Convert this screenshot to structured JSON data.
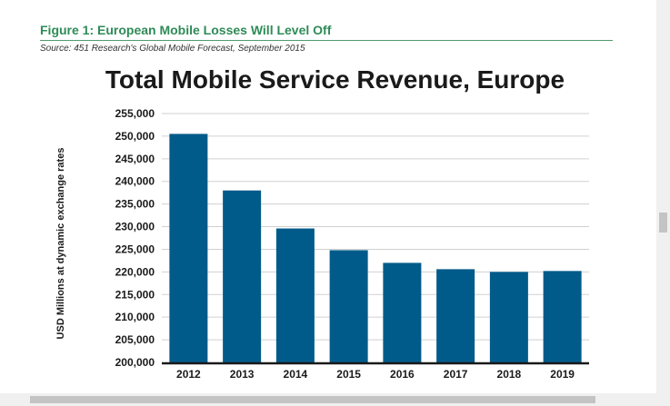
{
  "figure": {
    "title": "Figure 1: European Mobile Losses Will Level Off",
    "source": "Source: 451 Research's Global Mobile Forecast, September 2015"
  },
  "colors": {
    "bar": "#005b8a",
    "title_green": "#2e8b57",
    "grid": "#d0d0d0"
  },
  "chart_data": {
    "type": "bar",
    "title": "Total Mobile Service Revenue, Europe",
    "xlabel": "",
    "ylabel": "USD Millions at dynamic exchange rates",
    "categories": [
      "2012",
      "2013",
      "2014",
      "2015",
      "2016",
      "2017",
      "2018",
      "2019"
    ],
    "values": [
      250500,
      238000,
      229600,
      224800,
      222000,
      220600,
      220000,
      220200
    ],
    "ylim": [
      200000,
      255000
    ],
    "yticks": [
      200000,
      205000,
      210000,
      215000,
      220000,
      225000,
      230000,
      235000,
      240000,
      245000,
      250000,
      255000
    ],
    "ytick_labels": [
      "200,000",
      "205,000",
      "210,000",
      "215,000",
      "220,000",
      "225,000",
      "230,000",
      "235,000",
      "240,000",
      "245,000",
      "250,000",
      "255,000"
    ],
    "grid": true,
    "legend": "none"
  }
}
